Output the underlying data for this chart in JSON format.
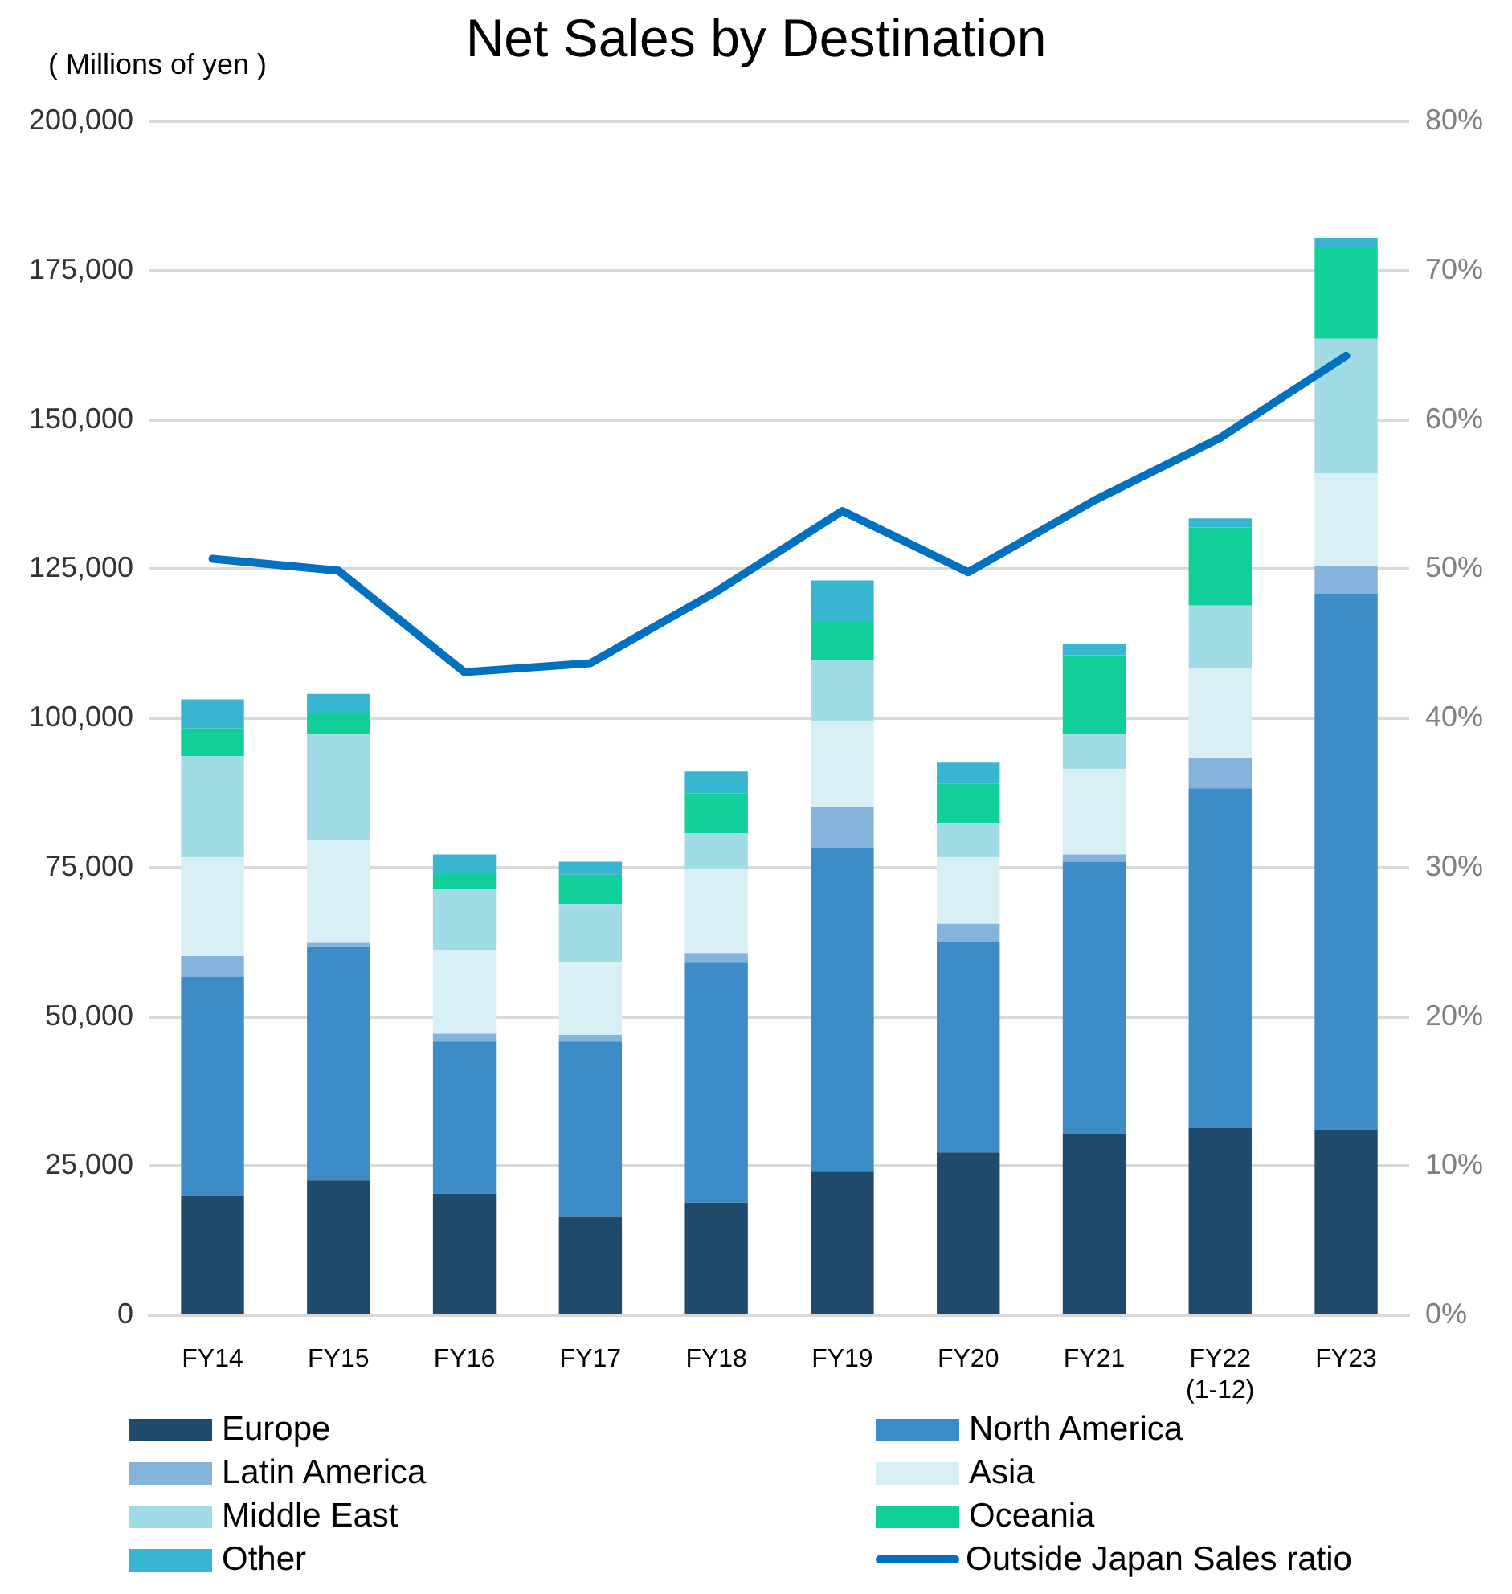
{
  "chart_data": {
    "type": "bar",
    "title": "Net Sales by Destination",
    "ylabel": "( Millions of yen )",
    "categories": [
      "FY14",
      "FY15",
      "FY16",
      "FY17",
      "FY18",
      "FY19",
      "FY20",
      "FY21",
      "FY22\n(1-12)",
      "FY23"
    ],
    "stacked": true,
    "series": [
      {
        "name": "Europe",
        "color": "#1f4a6b",
        "values": [
          20100,
          22600,
          20400,
          16500,
          18900,
          24100,
          27300,
          30300,
          31400,
          31200
        ]
      },
      {
        "name": "North America",
        "color": "#3d8bc7",
        "values": [
          36600,
          39100,
          25500,
          29400,
          40300,
          54300,
          35200,
          45700,
          56900,
          89700
        ]
      },
      {
        "name": "Latin America",
        "color": "#84b3db",
        "values": [
          3500,
          700,
          1300,
          1100,
          1500,
          6700,
          3100,
          1200,
          5000,
          4600
        ]
      },
      {
        "name": "Asia",
        "color": "#d8eff5",
        "values": [
          16500,
          17300,
          13900,
          12200,
          14000,
          14500,
          11100,
          14300,
          15200,
          15500
        ]
      },
      {
        "name": "Middle East",
        "color": "#a1dbe6",
        "values": [
          17000,
          17600,
          10400,
          9700,
          6000,
          10200,
          5800,
          5900,
          10400,
          22600
        ]
      },
      {
        "name": "Oceania",
        "color": "#11cf98",
        "values": [
          4600,
          3400,
          2400,
          4900,
          6700,
          6500,
          6600,
          13200,
          13100,
          15300
        ]
      },
      {
        "name": "Other",
        "color": "#38b5d0",
        "values": [
          4900,
          3400,
          3300,
          2200,
          3700,
          6800,
          3500,
          1900,
          1500,
          1600
        ]
      },
      {
        "name": "Outside Japan Sales ratio",
        "type": "line",
        "axis": "y2",
        "color": "#0070c0",
        "values": [
          50.7,
          49.9,
          43.1,
          43.7,
          48.5,
          53.9,
          49.8,
          54.6,
          58.8,
          64.3
        ]
      }
    ],
    "ylim": [
      0,
      200000
    ],
    "yticks": [
      0,
      {
        "value": 25000,
        "label": "25,000"
      },
      {
        "value": 50000,
        "label": "50,000"
      },
      {
        "value": 75000,
        "label": "75,000"
      },
      {
        "value": 100000,
        "label": "100,000"
      },
      {
        "value": 125000,
        "label": "125,000"
      },
      {
        "value": 150000,
        "label": "150,000"
      },
      {
        "value": 175000,
        "label": "175,000"
      },
      {
        "value": 200000,
        "label": "200,000"
      }
    ],
    "y2lim": [
      0,
      80
    ],
    "y2ticks": [
      {
        "value": 0,
        "label": "0%"
      },
      {
        "value": 10,
        "label": "10%"
      },
      {
        "value": 20,
        "label": "20%"
      },
      {
        "value": 30,
        "label": "30%"
      },
      {
        "value": 40,
        "label": "40%"
      },
      {
        "value": 50,
        "label": "50%"
      },
      {
        "value": 60,
        "label": "60%"
      },
      {
        "value": 70,
        "label": "70%"
      },
      {
        "value": 80,
        "label": "80%"
      }
    ],
    "grid": "y",
    "legend": "bottom",
    "marker": "none",
    "line_style": "solid"
  }
}
